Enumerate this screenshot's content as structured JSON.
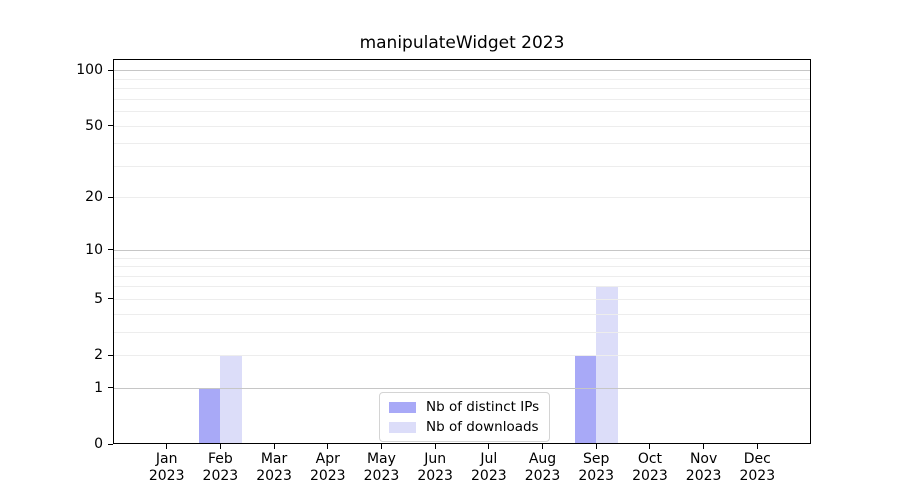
{
  "chart_data": {
    "type": "bar",
    "title": "manipulateWidget 2023",
    "categories": [
      "Jan 2023",
      "Feb 2023",
      "Mar 2023",
      "Apr 2023",
      "May 2023",
      "Jun 2023",
      "Jul 2023",
      "Aug 2023",
      "Sep 2023",
      "Oct 2023",
      "Nov 2023",
      "Dec 2023"
    ],
    "series": [
      {
        "name": "Nb of distinct IPs",
        "color": "#a8a9f7",
        "values": [
          0,
          1,
          0,
          0,
          0,
          0,
          0,
          0,
          2,
          0,
          0,
          0
        ]
      },
      {
        "name": "Nb of downloads",
        "color": "#dcddf9",
        "values": [
          0,
          2,
          0,
          0,
          0,
          0,
          0,
          0,
          6,
          0,
          0,
          0
        ]
      }
    ],
    "xlabel": "",
    "ylabel": "",
    "yscale": "log1p",
    "ylim": [
      0,
      115
    ],
    "y_ticks": [
      0,
      1,
      2,
      5,
      10,
      20,
      50,
      100
    ],
    "y_major_gridlines": [
      1,
      10,
      100
    ],
    "y_minor_gridlines": [
      2,
      3,
      4,
      5,
      6,
      7,
      8,
      9,
      20,
      30,
      40,
      50,
      60,
      70,
      80,
      90
    ],
    "grid": true,
    "grid_above_bars": true,
    "legend_position": "lower center",
    "colors": {
      "grid_major": "#c6c6c6",
      "grid_minor": "#ededed",
      "spine": "#000000",
      "text": "#000000",
      "background": "#ffffff",
      "legend_border": "#d4d4d4"
    }
  },
  "legend": {
    "items": [
      {
        "label": "Nb of distinct IPs",
        "color": "#a8a9f7"
      },
      {
        "label": "Nb of downloads",
        "color": "#dcddf9"
      }
    ]
  }
}
